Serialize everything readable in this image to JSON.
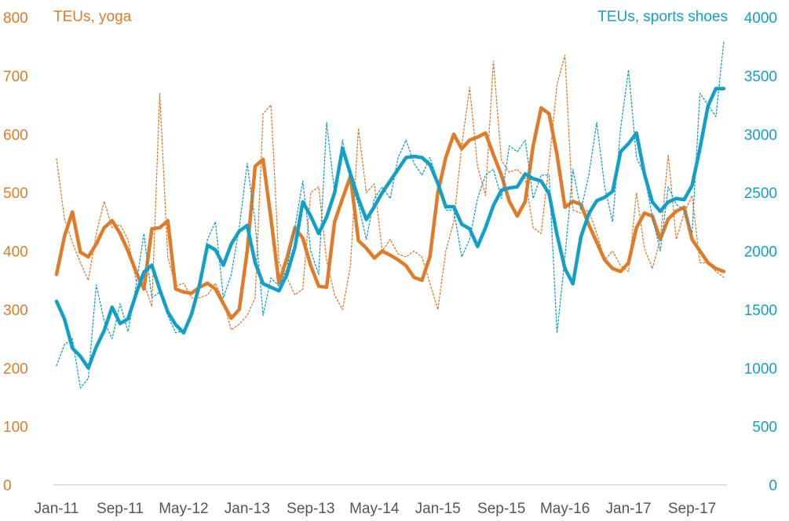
{
  "chart_data": {
    "type": "line",
    "left_axis_title": "TEUs, yoga",
    "right_axis_title": "TEUs, sports shoes",
    "left_ylim": [
      0,
      800
    ],
    "left_yticks": [
      0,
      100,
      200,
      300,
      400,
      500,
      600,
      700,
      800
    ],
    "right_ylim": [
      0,
      4000
    ],
    "right_yticks": [
      0,
      500,
      1000,
      1500,
      2000,
      2500,
      3000,
      3500,
      4000
    ],
    "x_tick_labels": [
      "Jan-11",
      "Sep-11",
      "May-12",
      "Jan-13",
      "Sep-13",
      "May-14",
      "Jan-15",
      "Sep-15",
      "May-16",
      "Jan-17",
      "Sep-17"
    ],
    "x_tick_index_step": 8,
    "colors": {
      "yoga": "#E07B2A",
      "shoes": "#13A0C7",
      "axis": "#cfcfcf"
    },
    "series": [
      {
        "name": "TEUs, yoga (monthly)",
        "axis": "left",
        "style": "dotted",
        "color": "#E07B2A",
        "values": [
          558,
          455,
          415,
          380,
          350,
          430,
          485,
          440,
          445,
          420,
          350,
          345,
          305,
          670,
          390,
          340,
          345,
          320,
          320,
          325,
          345,
          315,
          265,
          275,
          290,
          320,
          635,
          650,
          380,
          355,
          325,
          335,
          500,
          510,
          385,
          325,
          300,
          375,
          610,
          500,
          515,
          400,
          420,
          395,
          390,
          400,
          390,
          345,
          300,
          400,
          450,
          580,
          680,
          545,
          495,
          725,
          555,
          535,
          540,
          525,
          440,
          430,
          550,
          685,
          735,
          470,
          465,
          470,
          430,
          385,
          400,
          375,
          365,
          500,
          405,
          370,
          420,
          565,
          420,
          465,
          495,
          380,
          380,
          365,
          355
        ]
      },
      {
        "name": "TEUs, yoga (moving average)",
        "axis": "left",
        "style": "solid",
        "color": "#E07B2A",
        "values": [
          360,
          425,
          467,
          398,
          390,
          412,
          440,
          452,
          430,
          400,
          365,
          335,
          438,
          440,
          452,
          335,
          330,
          328,
          338,
          345,
          335,
          310,
          285,
          300,
          400,
          545,
          557,
          455,
          345,
          388,
          440,
          422,
          375,
          340,
          338,
          450,
          490,
          528,
          418,
          405,
          388,
          400,
          393,
          385,
          375,
          355,
          350,
          390,
          500,
          560,
          600,
          575,
          590,
          595,
          602,
          565,
          530,
          485,
          460,
          485,
          580,
          645,
          635,
          565,
          475,
          485,
          480,
          445,
          415,
          385,
          370,
          365,
          380,
          440,
          465,
          460,
          420,
          455,
          468,
          475,
          420,
          400,
          380,
          370,
          365
        ]
      },
      {
        "name": "TEUs, sports shoes (monthly)",
        "axis": "right",
        "style": "dotted",
        "color": "#13A0C7",
        "values": [
          1020,
          1200,
          1250,
          830,
          910,
          1710,
          1400,
          1250,
          1550,
          1310,
          1700,
          2150,
          1600,
          1650,
          1450,
          1300,
          1320,
          1450,
          1700,
          2100,
          2250,
          1600,
          1800,
          2200,
          2750,
          2250,
          1450,
          1770,
          1700,
          1850,
          2200,
          2600,
          2000,
          1800,
          3100,
          2500,
          2950,
          2600,
          2400,
          2100,
          2450,
          2550,
          2450,
          2800,
          2950,
          2750,
          2650,
          2800,
          2600,
          2350,
          2350,
          1950,
          2100,
          2450,
          2650,
          2700,
          2450,
          2900,
          2850,
          2950,
          2450,
          2650,
          2650,
          1300,
          1950,
          2700,
          2350,
          2650,
          3100,
          2550,
          2250,
          3050,
          3550,
          2800,
          2650,
          2300,
          2000,
          2550,
          2400,
          2350,
          2150,
          3350,
          3250,
          3150,
          3800
        ]
      },
      {
        "name": "TEUs, sports shoes (moving average)",
        "axis": "right",
        "style": "solid",
        "color": "#13A0C7",
        "values": [
          1570,
          1420,
          1170,
          1100,
          1000,
          1180,
          1320,
          1520,
          1380,
          1420,
          1630,
          1820,
          1880,
          1670,
          1480,
          1370,
          1300,
          1460,
          1710,
          2050,
          2010,
          1880,
          2060,
          2170,
          2220,
          1900,
          1720,
          1690,
          1660,
          1800,
          2030,
          2420,
          2300,
          2150,
          2290,
          2500,
          2880,
          2660,
          2450,
          2270,
          2380,
          2500,
          2600,
          2700,
          2800,
          2810,
          2800,
          2740,
          2580,
          2380,
          2380,
          2230,
          2190,
          2040,
          2200,
          2390,
          2520,
          2540,
          2550,
          2660,
          2620,
          2600,
          2490,
          2140,
          1850,
          1720,
          2120,
          2320,
          2430,
          2460,
          2510,
          2850,
          2920,
          3010,
          2660,
          2420,
          2340,
          2420,
          2450,
          2440,
          2560,
          2880,
          3240,
          3390,
          3390
        ]
      }
    ]
  }
}
